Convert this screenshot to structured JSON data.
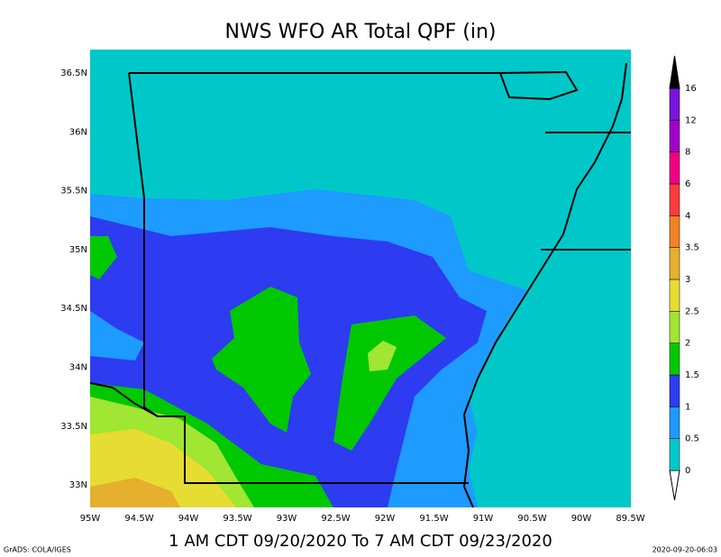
{
  "title": "NWS WFO AR Total QPF (in)",
  "lat_labels": [
    "36.5N",
    "36N",
    "35.5N",
    "35N",
    "34.5N",
    "34N",
    "33.5N",
    "33N"
  ],
  "lon_labels": [
    "95W",
    "94.5W",
    "94W",
    "93.5W",
    "93W",
    "92.5W",
    "92W",
    "91.5W",
    "91W",
    "90.5W",
    "90W",
    "89.5W"
  ],
  "colorbar": {
    "levels": [
      0,
      0.5,
      1,
      1.5,
      2,
      2.5,
      3,
      3.5,
      4,
      6,
      8,
      12,
      16
    ],
    "colors": [
      "#00c8c8",
      "#1e9bff",
      "#2d3cf0",
      "#00c800",
      "#a0e632",
      "#e6dc32",
      "#e6af2d",
      "#f08228",
      "#fa3c3c",
      "#f00082",
      "#a000c8",
      "#7814dc"
    ],
    "over_color": "#000000",
    "under_color": "#ffffff"
  },
  "subtitle": "1 AM CDT 09/20/2020 To 7 AM CDT 09/23/2020",
  "credit": "GrADS: COLA/IGES",
  "timestamp": "2020-09-20-06:03"
}
